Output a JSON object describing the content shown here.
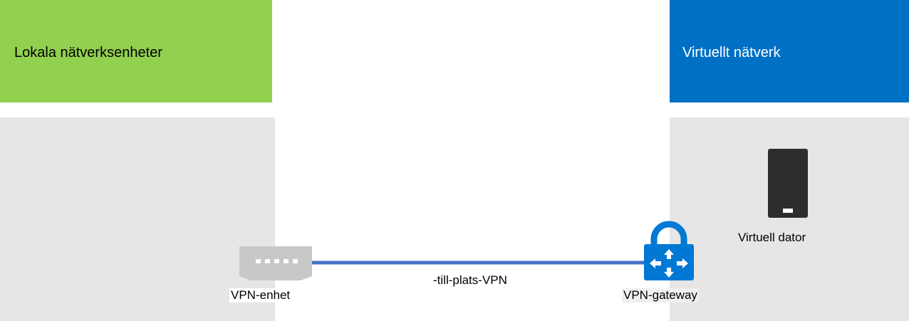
{
  "local_network": {
    "title": "Lokala nätverksenheter",
    "color": "#92d050"
  },
  "virtual_network": {
    "title": "Virtuellt nätverk",
    "color": "#0070c5"
  },
  "vpn_device": {
    "label": "VPN-enhet",
    "icon": "router-icon"
  },
  "connection": {
    "label": "-till-plats-VPN",
    "color": "#4472c4"
  },
  "vpn_gateway": {
    "label": "VPN-gateway",
    "icon": "vpn-gateway-lock-icon",
    "color": "#0078d4"
  },
  "virtual_machine": {
    "label": "Virtuell dator",
    "icon": "server-icon"
  }
}
